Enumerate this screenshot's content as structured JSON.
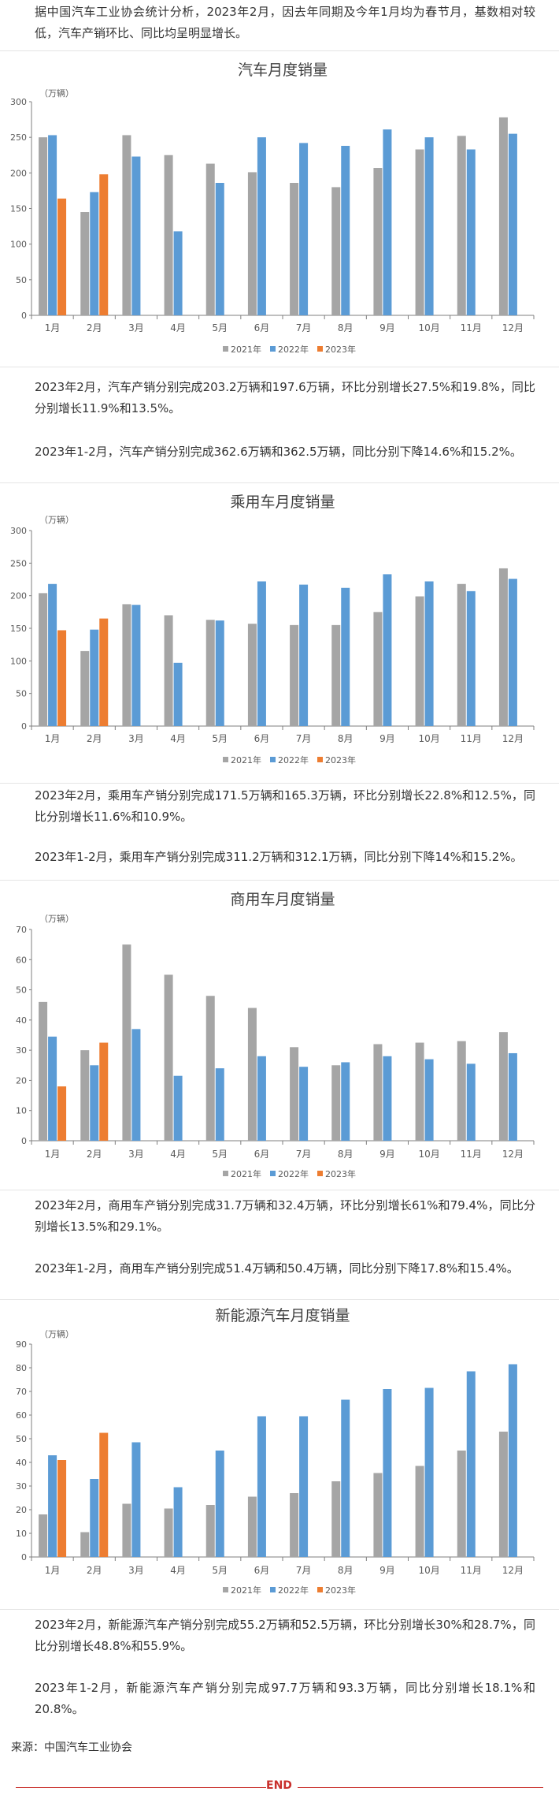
{
  "intro": "据中国汽车工业协会统计分析，2023年2月，因去年同期及今年1月均为春节月，基数相对较低，汽车产销环比、同比均呈明显增长。",
  "months": [
    "1月",
    "2月",
    "3月",
    "4月",
    "5月",
    "6月",
    "7月",
    "8月",
    "9月",
    "10月",
    "11月",
    "12月"
  ],
  "legend": [
    "2021年",
    "2022年",
    "2023年"
  ],
  "colors": {
    "y2021": "#a5a5a5",
    "y2022": "#5b9bd5",
    "y2023": "#ed7d31"
  },
  "unit": "（万辆）",
  "chart_data": [
    {
      "type": "bar",
      "title": "汽车月度销量",
      "ylim": [
        0,
        300
      ],
      "yticks": [
        0,
        50,
        100,
        150,
        200,
        250,
        300
      ],
      "series": [
        {
          "name": "2021年",
          "values": [
            250,
            145,
            253,
            225,
            213,
            201,
            186,
            180,
            207,
            233,
            252,
            278
          ]
        },
        {
          "name": "2022年",
          "values": [
            253,
            173,
            223,
            118,
            186,
            250,
            242,
            238,
            261,
            250,
            233,
            255
          ]
        },
        {
          "name": "2023年",
          "values": [
            164,
            198
          ]
        }
      ]
    },
    {
      "type": "bar",
      "title": "乘用车月度销量",
      "ylim": [
        0,
        300
      ],
      "yticks": [
        0,
        50,
        100,
        150,
        200,
        250,
        300
      ],
      "series": [
        {
          "name": "2021年",
          "values": [
            204,
            115,
            187,
            170,
            163,
            157,
            155,
            155,
            175,
            199,
            218,
            242
          ]
        },
        {
          "name": "2022年",
          "values": [
            218,
            148,
            186,
            97,
            162,
            222,
            217,
            212,
            233,
            222,
            207,
            226
          ]
        },
        {
          "name": "2023年",
          "values": [
            147,
            165
          ]
        }
      ]
    },
    {
      "type": "bar",
      "title": "商用车月度销量",
      "ylim": [
        0,
        70
      ],
      "yticks": [
        0,
        10,
        20,
        30,
        40,
        50,
        60,
        70
      ],
      "series": [
        {
          "name": "2021年",
          "values": [
            46,
            30,
            65,
            55,
            48,
            44,
            31,
            25,
            32,
            32.5,
            33,
            36
          ]
        },
        {
          "name": "2022年",
          "values": [
            34.5,
            25,
            37,
            21.5,
            24,
            28,
            24.5,
            26,
            28,
            27,
            25.5,
            29
          ]
        },
        {
          "name": "2023年",
          "values": [
            18,
            32.5
          ]
        }
      ]
    },
    {
      "type": "bar",
      "title": "新能源汽车月度销量",
      "ylim": [
        0,
        90
      ],
      "yticks": [
        0,
        10,
        20,
        30,
        40,
        50,
        60,
        70,
        80,
        90
      ],
      "series": [
        {
          "name": "2021年",
          "values": [
            18,
            10.5,
            22.5,
            20.5,
            22,
            25.5,
            27,
            32,
            35.5,
            38.5,
            45,
            53
          ]
        },
        {
          "name": "2022年",
          "values": [
            43,
            33,
            48.5,
            29.5,
            45,
            59.5,
            59.5,
            66.5,
            71,
            71.5,
            78.5,
            81.5
          ]
        },
        {
          "name": "2023年",
          "values": [
            41,
            52.5
          ]
        }
      ]
    }
  ],
  "texts": {
    "p1": "2023年2月，汽车产销分别完成203.2万辆和197.6万辆，环比分别增长27.5%和19.8%，同比分别增长11.9%和13.5%。",
    "p2": "2023年1-2月，汽车产销分别完成362.6万辆和362.5万辆，同比分别下降14.6%和15.2%。",
    "p3": "2023年2月，乘用车产销分别完成171.5万辆和165.3万辆，环比分别增长22.8%和12.5%，同比分别增长11.6%和10.9%。",
    "p4": "2023年1-2月，乘用车产销分别完成311.2万辆和312.1万辆，同比分别下降14%和15.2%。",
    "p5": "2023年2月，商用车产销分别完成31.7万辆和32.4万辆，环比分别增长61%和79.4%，同比分别增长13.5%和29.1%。",
    "p6": "2023年1-2月，商用车产销分别完成51.4万辆和50.4万辆，同比分别下降17.8%和15.4%。",
    "p7": "2023年2月，新能源汽车产销分别完成55.2万辆和52.5万辆，环比分别增长30%和28.7%，同比分别增长48.8%和55.9%。",
    "p8": "2023年1-2月，新能源汽车产销分别完成97.7万辆和93.3万辆，同比分别增长18.1%和20.8%。"
  },
  "source": "来源：中国汽车工业协会",
  "end": "END"
}
